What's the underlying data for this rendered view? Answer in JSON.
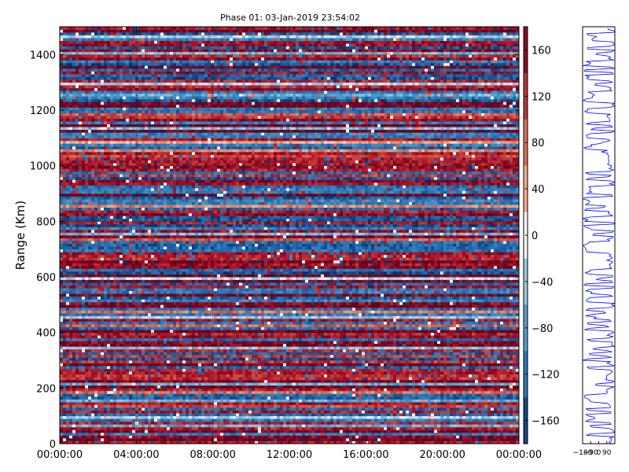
{
  "chart_data": [
    {
      "type": "heatmap",
      "title": "Phase 01: 03-Jan-2019 23:54:02",
      "xlabel": "",
      "ylabel": "Range (Km)",
      "x_tick_labels": [
        "00:00:00",
        "04:00:00",
        "08:00:00",
        "12:00:00",
        "16:00:00",
        "20:00:00",
        "00:00:00"
      ],
      "x_range_hours": [
        0,
        24
      ],
      "y_ticks": [
        0,
        200,
        400,
        600,
        800,
        1000,
        1200,
        1400
      ],
      "ylim": [
        0,
        1500
      ],
      "colormap": "RdBu_r",
      "clim": [
        -180,
        180
      ],
      "colorbar_ticks": [
        160,
        120,
        80,
        40,
        0,
        -40,
        -80,
        -120,
        -160
      ],
      "grid": true,
      "colors": {
        "low": "#053061",
        "high": "#67001f",
        "mid": "#f7f7f7"
      }
    },
    {
      "type": "line",
      "ylim": [
        0,
        1500
      ],
      "xlim": [
        -180,
        180
      ],
      "x_tick_labels": [
        "-180",
        "-90",
        "0",
        "90"
      ],
      "series_color": "#0000ff"
    }
  ]
}
